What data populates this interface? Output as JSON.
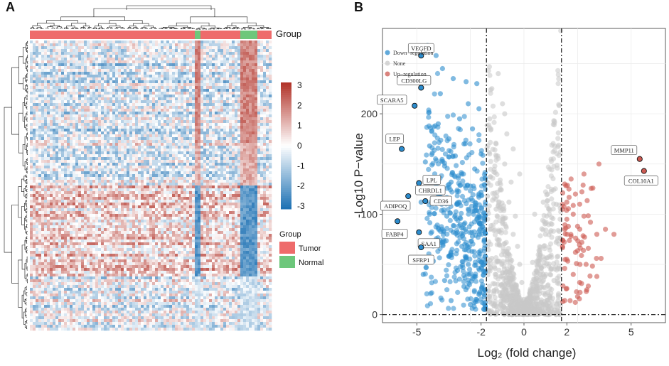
{
  "panels": {
    "heatmap_letter": "A",
    "volcano_letter": "B"
  },
  "colors": {
    "tumor": "#ee6b6b",
    "normal": "#6dc77b",
    "heat_high": "#b2342a",
    "heat_mid": "#ffffff",
    "heat_low": "#1f72b4",
    "down": "#2c8ccd",
    "none": "#c8c8c8",
    "up": "#cd5a52"
  },
  "heatmap": {
    "group_label": "Group",
    "colorbar_ticks": [
      "3",
      "2",
      "1",
      "0",
      "-1",
      "-2",
      "-3"
    ],
    "group_legend_title": "Group",
    "group_legend_items": [
      "Tumor",
      "Normal"
    ],
    "group_bar_segments": [
      "Tumor",
      "Normal",
      "Tumor",
      "Normal",
      "Tumor"
    ]
  },
  "chart_data": {
    "type": "scatter",
    "title": "",
    "xlabel": "Log₂ (fold change)",
    "ylabel": "-Log10 P−value",
    "xlim": [
      -6.6,
      6.6
    ],
    "ylim": [
      -8,
      285
    ],
    "x_ticks": [
      -5,
      -2,
      0,
      2,
      5
    ],
    "x_tick_labels": [
      "-5",
      "-2",
      "0",
      "2",
      "5"
    ],
    "y_ticks": [
      0,
      100,
      200
    ],
    "y_tick_labels": [
      "0",
      "100",
      "200"
    ],
    "thresholds": {
      "log2fc": [
        -1.75,
        1.75
      ],
      "neglog10p": 0
    },
    "legend": {
      "placement": "top-left",
      "entries": [
        "Down−regulation",
        "None",
        "Up−regulation"
      ]
    },
    "labeled_points": [
      {
        "gene": "VEGFD",
        "x": -4.8,
        "y": 258,
        "group": "down"
      },
      {
        "gene": "CD300LG",
        "x": -4.8,
        "y": 226,
        "group": "down"
      },
      {
        "gene": "SCARA5",
        "x": -5.1,
        "y": 208,
        "group": "down"
      },
      {
        "gene": "LEP",
        "x": -5.7,
        "y": 165,
        "group": "down"
      },
      {
        "gene": "LPL",
        "x": -4.9,
        "y": 131,
        "group": "down"
      },
      {
        "gene": "CHRDL1",
        "x": -4.7,
        "y": 125,
        "group": "down"
      },
      {
        "gene": "CD36",
        "x": -4.6,
        "y": 113,
        "group": "down"
      },
      {
        "gene": "ADIPOQ",
        "x": -5.4,
        "y": 118,
        "group": "down"
      },
      {
        "gene": "FABP4",
        "x": -5.9,
        "y": 93,
        "group": "down"
      },
      {
        "gene": "SAA1",
        "x": -4.9,
        "y": 82,
        "group": "down"
      },
      {
        "gene": "SFRP1",
        "x": -4.8,
        "y": 67,
        "group": "down"
      },
      {
        "gene": "MMP11",
        "x": 5.4,
        "y": 155,
        "group": "up"
      },
      {
        "gene": "COL10A1",
        "x": 5.6,
        "y": 143,
        "group": "up"
      }
    ],
    "series": [
      {
        "name": "Down−regulation",
        "points": [
          [
            -4.5,
            268
          ],
          [
            -4.1,
            258
          ],
          [
            -3.8,
            245
          ],
          [
            -3.3,
            235
          ],
          [
            -3.9,
            220
          ],
          [
            -2.7,
            232
          ],
          [
            -2.2,
            230
          ],
          [
            -2.6,
            210
          ],
          [
            -2.1,
            205
          ],
          [
            -3.0,
            195
          ],
          [
            -4.0,
            190
          ],
          [
            -2.4,
            185
          ],
          [
            -3.5,
            175
          ],
          [
            -4.4,
            168
          ],
          [
            -2.8,
            170
          ],
          [
            -2.0,
            160
          ],
          [
            -3.2,
            158
          ],
          [
            -4.6,
            152
          ],
          [
            -3.7,
            148
          ],
          [
            -2.3,
            145
          ],
          [
            -2.9,
            140
          ],
          [
            -4.2,
            135
          ],
          [
            -3.4,
            132
          ],
          [
            -2.5,
            128
          ],
          [
            -2.0,
            122
          ],
          [
            -3.9,
            120
          ],
          [
            -4.8,
            112
          ],
          [
            -3.1,
            110
          ],
          [
            -2.6,
            105
          ],
          [
            -4.4,
            100
          ],
          [
            -3.6,
            98
          ],
          [
            -2.2,
            95
          ],
          [
            -2.8,
            90
          ],
          [
            -4.0,
            86
          ],
          [
            -3.3,
            82
          ],
          [
            -2.4,
            78
          ],
          [
            -3.8,
            72
          ],
          [
            -2.9,
            68
          ],
          [
            -2.1,
            62
          ],
          [
            -3.5,
            58
          ],
          [
            -4.3,
            55
          ],
          [
            -2.6,
            50
          ],
          [
            -3.1,
            44
          ],
          [
            -2.3,
            38
          ],
          [
            -3.7,
            34
          ],
          [
            -2.8,
            28
          ],
          [
            -2.1,
            20
          ],
          [
            -3.4,
            14
          ],
          [
            -2.5,
            10
          ],
          [
            -4.7,
            40
          ]
        ]
      },
      {
        "name": "None",
        "points": [
          [
            -1.2,
            240
          ],
          [
            -1.5,
            225
          ],
          [
            -1.0,
            210
          ],
          [
            -1.6,
            195
          ],
          [
            -0.8,
            180
          ],
          [
            -1.3,
            170
          ],
          [
            -1.6,
            160
          ],
          [
            -0.9,
            150
          ],
          [
            -1.4,
            142
          ],
          [
            -0.6,
            132
          ],
          [
            -1.1,
            125
          ],
          [
            -1.7,
            118
          ],
          [
            -0.7,
            112
          ],
          [
            -1.3,
            105
          ],
          [
            -0.4,
            98
          ],
          [
            -1.0,
            92
          ],
          [
            -1.6,
            85
          ],
          [
            -0.5,
            80
          ],
          [
            -1.2,
            74
          ],
          [
            -0.3,
            68
          ],
          [
            -0.8,
            62
          ],
          [
            -1.5,
            56
          ],
          [
            -0.2,
            50
          ],
          [
            -0.6,
            44
          ],
          [
            -1.1,
            38
          ],
          [
            -0.1,
            32
          ],
          [
            -0.4,
            26
          ],
          [
            -0.9,
            20
          ],
          [
            0.0,
            15
          ],
          [
            -0.3,
            10
          ],
          [
            -0.6,
            6
          ],
          [
            0.2,
            4
          ],
          [
            0.5,
            8
          ],
          [
            0.8,
            12
          ],
          [
            0.3,
            18
          ],
          [
            1.1,
            22
          ],
          [
            0.6,
            28
          ],
          [
            1.4,
            34
          ],
          [
            0.9,
            40
          ],
          [
            1.6,
            46
          ],
          [
            0.4,
            52
          ],
          [
            1.2,
            58
          ],
          [
            0.7,
            64
          ],
          [
            1.5,
            72
          ],
          [
            1.0,
            80
          ],
          [
            1.3,
            90
          ],
          [
            0.5,
            100
          ],
          [
            0.9,
            112
          ],
          [
            1.1,
            120
          ],
          [
            -0.2,
            140
          ],
          [
            -0.5,
            165
          ],
          [
            -0.9,
            200
          ]
        ]
      },
      {
        "name": "Up−regulation",
        "points": [
          [
            1.9,
            130
          ],
          [
            2.1,
            125
          ],
          [
            2.4,
            120
          ],
          [
            2.0,
            112
          ],
          [
            2.6,
            110
          ],
          [
            1.8,
            105
          ],
          [
            2.3,
            100
          ],
          [
            2.8,
            98
          ],
          [
            2.0,
            95
          ],
          [
            3.1,
            92
          ],
          [
            2.5,
            88
          ],
          [
            1.9,
            85
          ],
          [
            3.4,
            80
          ],
          [
            2.2,
            78
          ],
          [
            2.7,
            72
          ],
          [
            1.8,
            68
          ],
          [
            3.0,
            66
          ],
          [
            2.4,
            62
          ],
          [
            2.0,
            55
          ],
          [
            2.9,
            50
          ],
          [
            1.9,
            46
          ],
          [
            2.3,
            40
          ],
          [
            3.4,
            38
          ],
          [
            2.6,
            32
          ],
          [
            2.0,
            26
          ],
          [
            2.5,
            18
          ],
          [
            1.9,
            14
          ],
          [
            3.5,
            150
          ],
          [
            2.8,
            140
          ],
          [
            4.2,
            80
          ],
          [
            3.8,
            85
          ],
          [
            2.2,
            135
          ],
          [
            3.6,
            56
          ]
        ]
      }
    ]
  }
}
